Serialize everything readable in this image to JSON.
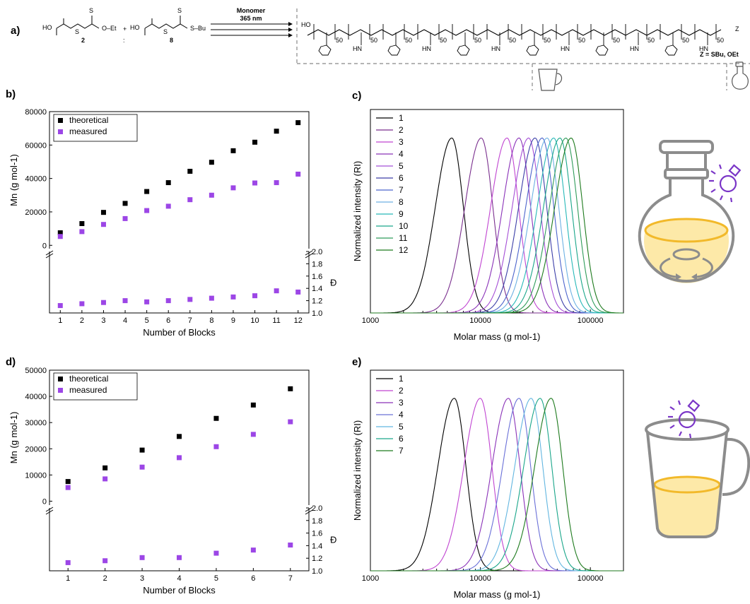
{
  "figure": {
    "panel_labels": [
      "a)",
      "b)",
      "c)",
      "d)",
      "e)"
    ],
    "scheme": {
      "condition_top": "Monomer",
      "condition_bottom": "365 nm",
      "reagent_2_number": "2",
      "reagent_8_number": "8",
      "reagent_2_group": "O–Et",
      "reagent_8_group": "S–Bu",
      "ratio_separator": ":",
      "plus": "+",
      "z_group_label": "Z = SBu, OEt",
      "block_dp": "50",
      "acid_label": "HO",
      "end_group": "Z",
      "hn_label": "HN"
    }
  },
  "chart_data": [
    {
      "id": "b",
      "type": "scatter",
      "xlabel": "Number of Blocks",
      "ylabel_top": "Mn (g mol-1)",
      "ylabel_bottom": "Đ",
      "x": [
        1,
        2,
        3,
        4,
        5,
        6,
        7,
        8,
        9,
        10,
        11,
        12
      ],
      "series": [
        {
          "name": "theoretical",
          "color": "#000000",
          "axis": "top",
          "values": [
            7500,
            13000,
            19700,
            25100,
            32200,
            37500,
            44300,
            49700,
            56600,
            61700,
            68300,
            73400
          ]
        },
        {
          "name": "measured",
          "color": "#9c46e6",
          "axis": "top",
          "values": [
            5300,
            8200,
            12500,
            16000,
            20800,
            23400,
            27300,
            30000,
            34400,
            37300,
            37500,
            42600
          ]
        },
        {
          "name": "measured dispersity",
          "color": "#9c46e6",
          "axis": "bottom",
          "values": [
            1.12,
            1.15,
            1.17,
            1.2,
            1.18,
            1.2,
            1.22,
            1.24,
            1.26,
            1.28,
            1.36,
            1.34
          ]
        }
      ],
      "ylim_top": [
        -2000,
        80000
      ],
      "yticks_top": [
        0,
        20000,
        40000,
        60000,
        80000
      ],
      "ylim_bottom": [
        1.0,
        2.0
      ],
      "yticks_bottom": [
        1.0,
        1.2,
        1.4,
        1.6,
        1.8,
        2.0
      ],
      "legend": "top-left"
    },
    {
      "id": "c",
      "type": "line",
      "xlabel": "Molar mass (g mol-1)",
      "ylabel": "Normalized intensity (RI)",
      "xscale": "log",
      "xlim": [
        1000,
        200000
      ],
      "xticks": [
        1000,
        10000,
        100000
      ],
      "xtick_labels": [
        "1000",
        "10000",
        "100000"
      ],
      "legend": "top-left",
      "series": [
        {
          "name": "1",
          "peak": 5500,
          "color": "#000000"
        },
        {
          "name": "2",
          "peak": 10200,
          "color": "#7a2f8e"
        },
        {
          "name": "3",
          "peak": 17500,
          "color": "#c044d1"
        },
        {
          "name": "4",
          "peak": 22500,
          "color": "#8a32b8"
        },
        {
          "name": "5",
          "peak": 27500,
          "color": "#a54fd6"
        },
        {
          "name": "6",
          "peak": 31500,
          "color": "#3c3fa8"
        },
        {
          "name": "7",
          "peak": 36500,
          "color": "#4c64cc"
        },
        {
          "name": "8",
          "peak": 40500,
          "color": "#6db1e3"
        },
        {
          "name": "9",
          "peak": 46500,
          "color": "#27b8b8"
        },
        {
          "name": "10",
          "peak": 53000,
          "color": "#1aa68a"
        },
        {
          "name": "11",
          "peak": 60000,
          "color": "#2f9c5a"
        },
        {
          "name": "12",
          "peak": 67000,
          "color": "#1d7a1d"
        }
      ]
    },
    {
      "id": "d",
      "type": "scatter",
      "xlabel": "Number of Blocks",
      "ylabel_top": "Mn (g mol-1)",
      "ylabel_bottom": "Đ",
      "x": [
        1,
        2,
        3,
        4,
        5,
        6,
        7
      ],
      "series": [
        {
          "name": "theoretical",
          "color": "#000000",
          "axis": "top",
          "values": [
            7500,
            12700,
            19500,
            24700,
            31600,
            36700,
            42900
          ]
        },
        {
          "name": "measured",
          "color": "#9c46e6",
          "axis": "top",
          "values": [
            5200,
            8500,
            13000,
            16600,
            20800,
            25500,
            30300
          ]
        },
        {
          "name": "measured dispersity",
          "color": "#9c46e6",
          "axis": "bottom",
          "values": [
            1.13,
            1.16,
            1.21,
            1.21,
            1.28,
            1.33,
            1.41
          ]
        }
      ],
      "ylim_top": [
        -1500,
        50000
      ],
      "yticks_top": [
        0,
        10000,
        20000,
        30000,
        40000,
        50000
      ],
      "ylim_bottom": [
        1.0,
        2.0
      ],
      "yticks_bottom": [
        1.0,
        1.2,
        1.4,
        1.6,
        1.8,
        2.0
      ],
      "legend": "top-left"
    },
    {
      "id": "e",
      "type": "line",
      "xlabel": "Molar mass (g mol-1)",
      "ylabel": "Normalized intensity (RI)",
      "xscale": "log",
      "xlim": [
        1000,
        200000
      ],
      "xticks": [
        1000,
        10000,
        100000
      ],
      "xtick_labels": [
        "1000",
        "10000",
        "100000"
      ],
      "legend": "top-left",
      "series": [
        {
          "name": "1",
          "peak": 5800,
          "color": "#000000"
        },
        {
          "name": "2",
          "peak": 10000,
          "color": "#c044d1"
        },
        {
          "name": "3",
          "peak": 18000,
          "color": "#8a32b8"
        },
        {
          "name": "4",
          "peak": 22500,
          "color": "#6a70d8"
        },
        {
          "name": "5",
          "peak": 29000,
          "color": "#62b6e0"
        },
        {
          "name": "6",
          "peak": 35000,
          "color": "#1aa68a"
        },
        {
          "name": "7",
          "peak": 44000,
          "color": "#1d7a1d"
        }
      ]
    }
  ],
  "colors": {
    "solution": "#f5c842",
    "solution_fill": "#fde9a8",
    "vessel": "#8c8c8c",
    "bulb": "#7a35c7"
  },
  "icons": [
    "round-bottom-flask-icon",
    "mug-icon",
    "light-bulb-icon",
    "stir-arrows-icon"
  ]
}
